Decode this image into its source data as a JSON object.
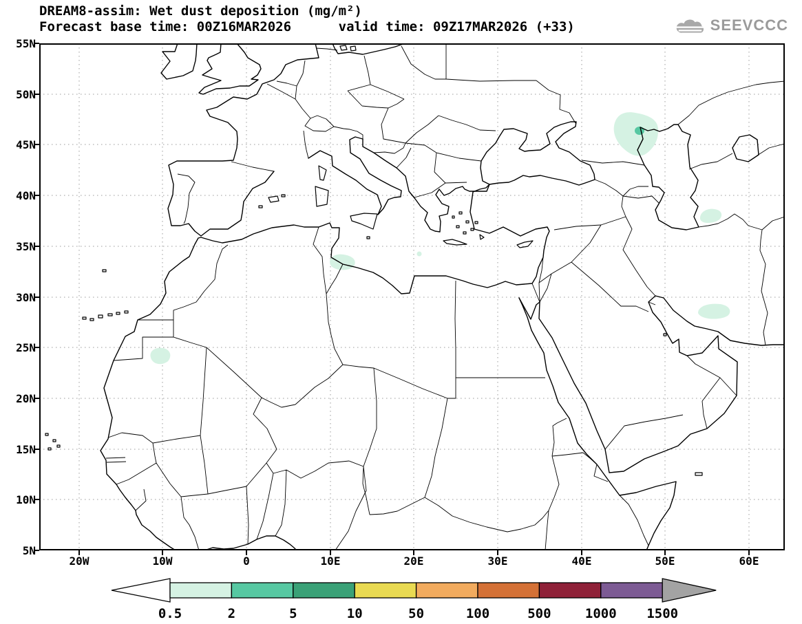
{
  "header": {
    "title": "DREAM8-assim: Wet dust deposition (mg/m²)",
    "subtitle": "Forecast base time: 00Z16MAR2026      valid time: 09Z17MAR2026 (+33)",
    "logo_text": "SEEVCCC"
  },
  "map": {
    "lat_ticks": [
      "55N",
      "50N",
      "45N",
      "40N",
      "35N",
      "30N",
      "25N",
      "20N",
      "15N",
      "10N",
      "5N"
    ],
    "lon_tic ks_note": "",
    "lon_ticks": [
      "20W",
      "10W",
      "0",
      "10E",
      "20E",
      "30E",
      "40E",
      "50E",
      "60E"
    ]
  },
  "colorbar": {
    "values": [
      "0.5",
      "2",
      "5",
      "10",
      "50",
      "100",
      "500",
      "1000",
      "1500"
    ],
    "colors": [
      "#ffffff",
      "#d5f2e3",
      "#57c8a2",
      "#3aa177",
      "#e9da52",
      "#f2ab5e",
      "#d47136",
      "#8f2138",
      "#7d5b94",
      "#a3a3a3"
    ]
  },
  "chart_data": {
    "type": "heatmap",
    "model": "DREAM8-assim",
    "variable": "Wet dust deposition",
    "units": "mg/m²",
    "title": "DREAM8-assim: Wet dust deposition (mg/m²)",
    "forecast_base_time": "00Z16MAR2026",
    "valid_time": "09Z17MAR2026",
    "forecast_hour": "+33",
    "lat_axis_ticks": [
      "55N",
      "50N",
      "45N",
      "40N",
      "35N",
      "30N",
      "25N",
      "20N",
      "15N",
      "10N",
      "5N"
    ],
    "lon_axis_ticks": [
      "20W",
      "10W",
      "0",
      "10E",
      "20E",
      "30E",
      "40E",
      "50E",
      "60E"
    ],
    "lat_range": [
      "5N",
      "55N"
    ],
    "lon_range": [
      "20W",
      "60E"
    ],
    "grid": true,
    "legend_position": "bottom",
    "scale_levels_mg_m2": [
      0.5,
      2,
      5,
      10,
      50,
      100,
      500,
      1000,
      1500
    ],
    "scale_colors": [
      "#ffffff",
      "#d5f2e3",
      "#57c8a2",
      "#3aa177",
      "#e9da52",
      "#f2ab5e",
      "#d47136",
      "#8f2138",
      "#7d5b94",
      "#a3a3a3"
    ],
    "deposition_regions": [
      {
        "area": "NW Caspian lowland (~45-48N, 44-49E)",
        "value_mg_m2": "0.5-2",
        "core": "small 2-5 spot near 46.3N 47E"
      },
      {
        "area": "SE Caspian / Turkmenistan-Iran border (~38N, 55E)",
        "value_mg_m2": "0.5-2"
      },
      {
        "area": "Tunisia-Libya coast near Gulf of Gabes (~33.5N, 10-13E)",
        "value_mg_m2": "0.5-2"
      },
      {
        "area": "Mediterranean south of Crete (~34N, 21E)",
        "value_mg_m2": "0.5-2"
      },
      {
        "area": "Southern Iran (~28.5N, 54-57E)",
        "value_mg_m2": "0.5-2"
      },
      {
        "area": "Mauritania (~24N, 10W)",
        "value_mg_m2": "0.5-2"
      }
    ]
  }
}
